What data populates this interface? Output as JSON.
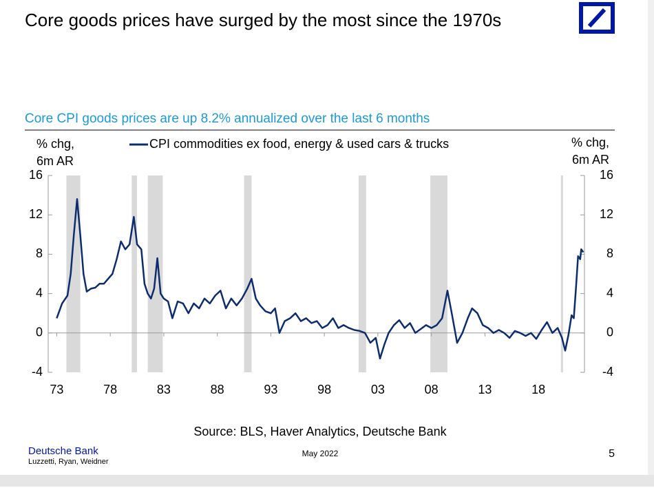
{
  "slide": {
    "title": "Core goods prices have surged by the most since the 1970s",
    "footer_org": "Deutsche Bank",
    "footer_authors": "Luzzetti, Ryan, Weidner",
    "footer_date": "May 2022",
    "page_number": "5"
  },
  "chart_data": {
    "type": "line",
    "title": "Core CPI goods prices are up 8.2% annualized over the last 6 months",
    "source": "Source: BLS, Haver Analytics, Deutsche Bank",
    "y_label": [
      "% chg,",
      "6m AR"
    ],
    "y2_label": [
      "% chg,",
      "6m AR"
    ],
    "xlim": [
      1972.2,
      2022.3
    ],
    "ylim": [
      -4,
      16
    ],
    "y2lim": [
      -4,
      16
    ],
    "yticks": [
      -4,
      0,
      4,
      8,
      12,
      16
    ],
    "y2ticks": [
      -4,
      0,
      4,
      8,
      12,
      16
    ],
    "xticks": [
      {
        "value": 1973,
        "label": "73"
      },
      {
        "value": 1978,
        "label": "78"
      },
      {
        "value": 1983,
        "label": "83"
      },
      {
        "value": 1988,
        "label": "88"
      },
      {
        "value": 1993,
        "label": "93"
      },
      {
        "value": 1998,
        "label": "98"
      },
      {
        "value": 2003,
        "label": "03"
      },
      {
        "value": 2008,
        "label": "08"
      },
      {
        "value": 2013,
        "label": "13"
      },
      {
        "value": 2018,
        "label": "18"
      }
    ],
    "recessions": [
      [
        1973.9,
        1975.2
      ],
      [
        1980.0,
        1980.5
      ],
      [
        1981.5,
        1982.9
      ],
      [
        1990.5,
        1991.2
      ],
      [
        2001.2,
        2001.9
      ],
      [
        2007.9,
        2009.5
      ],
      [
        2020.1,
        2020.3
      ]
    ],
    "recession_color": "#d9d9d9",
    "x": [
      1973.0,
      1973.5,
      1974.0,
      1974.3,
      1974.6,
      1974.9,
      1975.2,
      1975.5,
      1975.8,
      1976.2,
      1976.6,
      1977.0,
      1977.4,
      1977.8,
      1978.2,
      1978.6,
      1979.0,
      1979.4,
      1979.8,
      1980.2,
      1980.5,
      1980.9,
      1981.2,
      1981.5,
      1981.8,
      1982.1,
      1982.4,
      1982.7,
      1983.0,
      1983.4,
      1983.8,
      1984.3,
      1984.8,
      1985.3,
      1985.8,
      1986.3,
      1986.8,
      1987.3,
      1987.8,
      1988.3,
      1988.8,
      1989.3,
      1989.8,
      1990.3,
      1990.8,
      1991.2,
      1991.6,
      1992.0,
      1992.5,
      1993.0,
      1993.4,
      1993.8,
      1994.3,
      1994.8,
      1995.3,
      1995.8,
      1996.3,
      1996.8,
      1997.3,
      1997.8,
      1998.3,
      1998.8,
      1999.3,
      1999.8,
      2000.3,
      2000.8,
      2001.3,
      2001.8,
      2002.3,
      2002.8,
      2003.2,
      2003.6,
      2004.0,
      2004.5,
      2005.0,
      2005.5,
      2006.0,
      2006.5,
      2007.0,
      2007.5,
      2008.0,
      2008.5,
      2009.0,
      2009.5,
      2009.9,
      2010.4,
      2010.9,
      2011.4,
      2011.8,
      2012.3,
      2012.8,
      2013.3,
      2013.8,
      2014.3,
      2014.8,
      2015.3,
      2015.8,
      2016.3,
      2016.8,
      2017.3,
      2017.8,
      2018.3,
      2018.8,
      2019.3,
      2019.8,
      2020.2,
      2020.5,
      2020.8,
      2021.1,
      2021.3,
      2021.5,
      2021.7,
      2021.9,
      2022.0,
      2022.2
    ],
    "series": [
      {
        "name": "CPI commodities ex food, energy & used cars & trucks",
        "color": "#0c2c6e",
        "values": [
          1.5,
          3,
          3.8,
          6,
          10,
          13.6,
          10,
          6,
          4.2,
          4.5,
          4.6,
          5,
          5,
          5.5,
          6,
          7.5,
          9.3,
          8.5,
          9,
          11.8,
          9,
          8.5,
          5,
          4,
          3.5,
          4.5,
          7.6,
          4,
          3.5,
          3.2,
          1.5,
          3.2,
          3,
          2,
          3,
          2.5,
          3.5,
          3,
          3.8,
          4.3,
          2.5,
          3.5,
          2.8,
          3.5,
          4.5,
          5.5,
          3.5,
          2.8,
          2.2,
          2,
          2.5,
          0,
          1.2,
          1.5,
          2,
          1.2,
          1.5,
          1,
          1.2,
          0.5,
          0.8,
          1.5,
          0.5,
          0.8,
          0.5,
          0.3,
          0.2,
          0,
          -1,
          -0.5,
          -2.6,
          -1.2,
          0,
          0.8,
          1.3,
          0.5,
          1,
          0,
          0.4,
          0.8,
          0.5,
          0.8,
          1.5,
          4.3,
          2,
          -1,
          0,
          1.5,
          2.5,
          2,
          0.8,
          0.5,
          0,
          0.3,
          0,
          -0.5,
          0.2,
          0,
          -0.3,
          0,
          -0.6,
          0.3,
          1.1,
          0,
          0.5,
          -0.5,
          -1.8,
          -0.2,
          1.8,
          1.5,
          4.5,
          7.8,
          7.5,
          8.5,
          8.2
        ]
      }
    ]
  }
}
